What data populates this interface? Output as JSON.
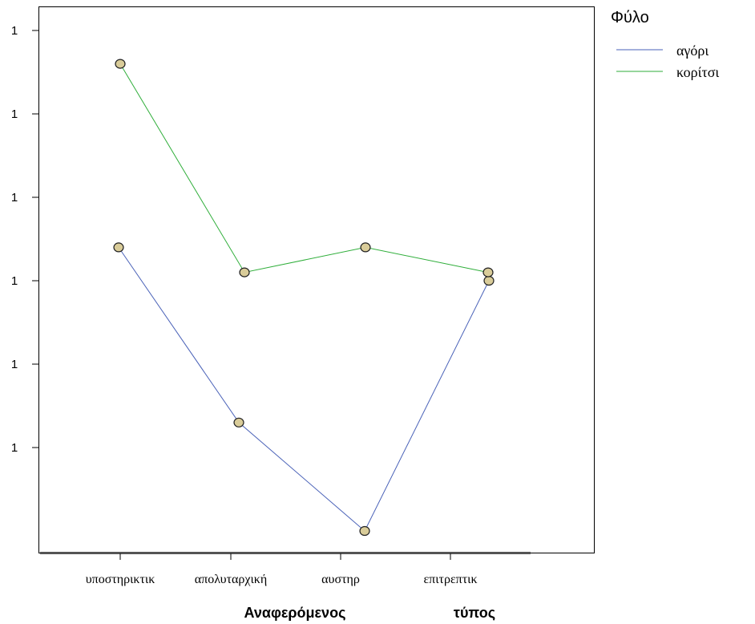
{
  "chart_data": {
    "type": "line",
    "title": "",
    "xlabel_parts": [
      "Αναφερόμενος",
      "τύπος"
    ],
    "ylabel": "",
    "categories": [
      "υποστηρικτικ",
      "απολυταρχική",
      "αυστηρ",
      "επιτρεπτικ"
    ],
    "y_tick_labels": [
      "1",
      "1",
      "1",
      "1",
      "1",
      "1"
    ],
    "y_ticks": [
      1.0,
      0.9,
      0.8,
      0.7,
      0.6,
      0.5
    ],
    "ylim": [
      0.4,
      1.0
    ],
    "legend_title": "Φύλο",
    "legend_position": "top-right, outside plot",
    "marker_fill": "#d9cc99",
    "series": [
      {
        "name": "αγόρι",
        "color": "#4a62b8",
        "values": [
          0.74,
          0.53,
          0.4,
          0.7
        ]
      },
      {
        "name": "κορίτσι",
        "color": "#2fae3a",
        "values": [
          0.96,
          0.71,
          0.74,
          0.71
        ]
      }
    ]
  }
}
